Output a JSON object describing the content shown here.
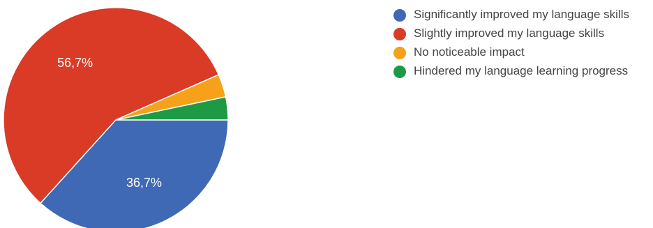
{
  "chart_data": {
    "type": "pie",
    "categories": [
      "Significantly improved my language skills",
      "Slightly improved my language skills",
      "No noticeable impact",
      "Hindered my language learning progress"
    ],
    "values": [
      36.7,
      56.7,
      3.3,
      3.3
    ],
    "slice_labels": [
      "36,7%",
      "56,7%",
      "",
      ""
    ],
    "colors": [
      "#3f68b5",
      "#d93b27",
      "#f5a11a",
      "#1e9a45"
    ],
    "legend_position": "right",
    "start": "3 o'clock",
    "direction": "clockwise"
  },
  "legend": {
    "items": [
      {
        "label": "Significantly improved my language skills",
        "color": "#3f68b5"
      },
      {
        "label": "Slightly improved my language skills",
        "color": "#d93b27"
      },
      {
        "label": "No noticeable impact",
        "color": "#f5a11a"
      },
      {
        "label": "Hindered my language learning progress",
        "color": "#1e9a45"
      }
    ]
  }
}
